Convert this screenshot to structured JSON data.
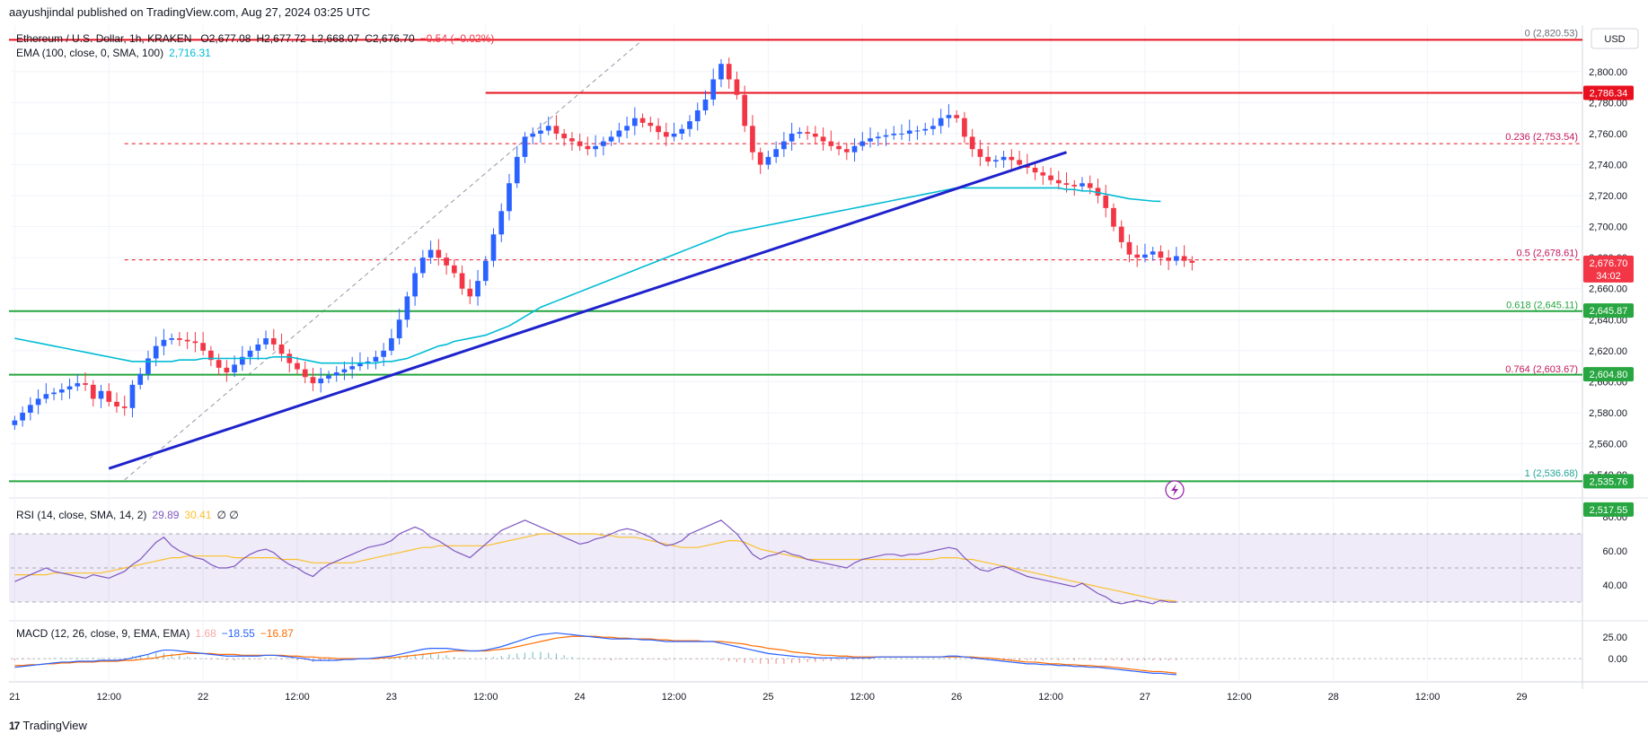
{
  "header": {
    "published": "aayushjindal published on TradingView.com, Aug 27, 2024 03:25 UTC"
  },
  "legend": {
    "symbol": "Ethereum / U.S. Dollar, 1h, KRAKEN",
    "open": "O2,677.08",
    "high": "H2,677.72",
    "low": "L2,668.07",
    "close": "C2,676.70",
    "change": "−0.54 (−0.02%)",
    "ema_label": "EMA (100, close, 0, SMA, 100)",
    "ema_value": "2,716.31"
  },
  "currency": "USD",
  "footer": {
    "brand": "TradingView",
    "logo": "17"
  },
  "colors": {
    "bull": "#2962ff",
    "bear": "#f23645",
    "ema": "#00bcd4",
    "trendline": "#1e22cc",
    "resistance": "#e8101e",
    "support": "#27a641",
    "rsi": "#7e57c2",
    "rsi_ma": "#fbc02d",
    "macd": "#2962ff",
    "signal": "#ff6d00"
  },
  "chart_data": {
    "type": "candlestick",
    "y_axis": {
      "ticks": [
        2540,
        2560,
        2580,
        2600,
        2620,
        2640,
        2660,
        2680,
        2700,
        2720,
        2740,
        2760,
        2780,
        2800
      ],
      "tick_labels": [
        "2,540.00",
        "2,560.00",
        "2,580.00",
        "2,600.00",
        "2,620.00",
        "2,640.00",
        "2,660.00",
        "2,680.00",
        "2,700.00",
        "2,720.00",
        "2,740.00",
        "2,760.00",
        "2,780.00",
        "2,800.00"
      ],
      "ylim": [
        2525,
        2830
      ]
    },
    "x_axis": {
      "labels": [
        {
          "t": 0,
          "label": "21"
        },
        {
          "t": 12,
          "label": "12:00"
        },
        {
          "t": 24,
          "label": "22"
        },
        {
          "t": 36,
          "label": "12:00"
        },
        {
          "t": 48,
          "label": "23"
        },
        {
          "t": 60,
          "label": "12:00"
        },
        {
          "t": 72,
          "label": "24"
        },
        {
          "t": 84,
          "label": "12:00"
        },
        {
          "t": 96,
          "label": "25"
        },
        {
          "t": 108,
          "label": "12:00"
        },
        {
          "t": 120,
          "label": "26"
        },
        {
          "t": 132,
          "label": "12:00"
        },
        {
          "t": 144,
          "label": "27"
        },
        {
          "t": 156,
          "label": "12:00"
        },
        {
          "t": 168,
          "label": "28"
        },
        {
          "t": 180,
          "label": "12:00"
        },
        {
          "t": 192,
          "label": "29"
        }
      ],
      "xlim": [
        -0.5,
        199.5
      ]
    },
    "closes": [
      2575,
      2580,
      2585,
      2589,
      2592,
      2593,
      2595,
      2597,
      2599,
      2598,
      2589,
      2594,
      2587,
      2584,
      2583,
      2598,
      2605,
      2615,
      2623,
      2627,
      2628,
      2627,
      2626,
      2625,
      2620,
      2614,
      2609,
      2606,
      2611,
      2616,
      2620,
      2624,
      2628,
      2624,
      2618,
      2612,
      2608,
      2603,
      2599,
      2602,
      2604,
      2606,
      2608,
      2610,
      2612,
      2613,
      2616,
      2620,
      2628,
      2640,
      2655,
      2670,
      2680,
      2685,
      2680,
      2675,
      2670,
      2660,
      2655,
      2665,
      2678,
      2695,
      2710,
      2728,
      2745,
      2758,
      2760,
      2762,
      2765,
      2760,
      2757,
      2755,
      2752,
      2750,
      2752,
      2755,
      2758,
      2762,
      2765,
      2770,
      2767,
      2765,
      2761,
      2758,
      2760,
      2763,
      2768,
      2775,
      2782,
      2795,
      2805,
      2795,
      2785,
      2765,
      2748,
      2740,
      2745,
      2750,
      2755,
      2760,
      2761,
      2760,
      2758,
      2755,
      2752,
      2750,
      2748,
      2752,
      2755,
      2757,
      2758,
      2759,
      2760,
      2760,
      2762,
      2762,
      2763,
      2765,
      2770,
      2772,
      2770,
      2758,
      2750,
      2745,
      2742,
      2743,
      2745,
      2743,
      2740,
      2738,
      2735,
      2733,
      2730,
      2728,
      2727,
      2726,
      2728,
      2725,
      2720,
      2712,
      2700,
      2690,
      2682,
      2680,
      2682,
      2684,
      2680,
      2678,
      2681,
      2678,
      2676.7
    ],
    "highs_lows_note": "OHLC series of ETH/USD 1h candles, approx. from chart",
    "ema100": [
      2628,
      2627,
      2626,
      2625,
      2624,
      2623,
      2622,
      2621,
      2620,
      2619,
      2618,
      2617,
      2616,
      2615,
      2614,
      2613,
      2613,
      2613,
      2613,
      2613,
      2613,
      2614,
      2614,
      2614,
      2615,
      2615,
      2615,
      2615,
      2615,
      2615,
      2615,
      2615,
      2615,
      2616,
      2616,
      2616,
      2615,
      2614,
      2613,
      2612,
      2612,
      2612,
      2612,
      2612,
      2612,
      2612,
      2612,
      2613,
      2613,
      2614,
      2615,
      2617,
      2619,
      2621,
      2623,
      2624,
      2626,
      2627,
      2628,
      2629,
      2630,
      2632,
      2634,
      2636,
      2639,
      2642,
      2645,
      2648,
      2650,
      2652,
      2654,
      2656,
      2658,
      2660,
      2662,
      2664,
      2666,
      2668,
      2670,
      2672,
      2674,
      2676,
      2678,
      2680,
      2682,
      2684,
      2686,
      2688,
      2690,
      2692,
      2694,
      2696,
      2697,
      2698,
      2699,
      2700,
      2701,
      2702,
      2703,
      2704,
      2705,
      2706,
      2707,
      2708,
      2709,
      2710,
      2711,
      2712,
      2713,
      2714,
      2715,
      2716,
      2717,
      2718,
      2719,
      2720,
      2721,
      2722,
      2723,
      2724,
      2725,
      2725,
      2725,
      2725,
      2725,
      2725,
      2725,
      2725,
      2725,
      2725,
      2725,
      2725,
      2725,
      2725,
      2724,
      2724,
      2723,
      2723,
      2722,
      2721,
      2720,
      2719,
      2718,
      2717.5,
      2717,
      2716.5,
      2716.3
    ],
    "horizontal_levels": [
      {
        "price": 2820.53,
        "kind": "resistance",
        "style": "solid"
      },
      {
        "price": 2786.34,
        "kind": "resistance",
        "style": "solid",
        "from_t": 60
      },
      {
        "price": 2645.5,
        "kind": "support",
        "style": "solid"
      },
      {
        "price": 2604.5,
        "kind": "support",
        "style": "solid"
      },
      {
        "price": 2535.76,
        "kind": "support",
        "style": "solid"
      }
    ],
    "fibonacci": {
      "from_t": 14,
      "levels": [
        {
          "ratio_label": "0",
          "price": 2820.53,
          "label": "0 (2,820.53)",
          "dashed": false
        },
        {
          "ratio_label": "0.236",
          "price": 2753.54,
          "label": "0.236 (2,753.54)",
          "dashed": true
        },
        {
          "ratio_label": "0.5",
          "price": 2678.61,
          "label": "0.5 (2,678.61)",
          "dashed": true
        },
        {
          "ratio_label": "0.618",
          "price": 2645.11,
          "label": "0.618 (2,645.11)",
          "dashed": false
        },
        {
          "ratio_label": "0.764",
          "price": 2603.67,
          "label": "0.764 (2,603.67)",
          "dashed": false
        },
        {
          "ratio_label": "1",
          "price": 2536.68,
          "label": "1 (2,536.68)",
          "dashed": false
        }
      ],
      "diagonal": {
        "t1": 14,
        "p1": 2536.68,
        "t2": 80,
        "p2": 2820.53
      }
    },
    "trendline": {
      "t1": 12,
      "p1": 2544,
      "t2": 134,
      "p2": 2748
    },
    "price_tags": [
      {
        "price": 2786.34,
        "label": "2,786.34",
        "color": "#e8101e"
      },
      {
        "price": 2676.7,
        "label": "2,676.70",
        "sub": "34:02",
        "color": "#f23645"
      },
      {
        "price": 2645.87,
        "label": "2,645.87",
        "color": "#27a641"
      },
      {
        "price": 2604.8,
        "label": "2,604.80",
        "color": "#27a641"
      },
      {
        "price": 2535.76,
        "label": "2,535.76",
        "color": "#27a641"
      },
      {
        "price": 2517.55,
        "label": "2,517.55",
        "color": "#27a641"
      }
    ],
    "rsi": {
      "label": "RSI (14, close, SMA, 14, 2)",
      "value": "29.89",
      "ma_value": "30.41",
      "extra": "∅ ∅",
      "ticks": [
        "80.00",
        "60.00",
        "40.00"
      ],
      "tick_values": [
        80,
        60,
        40
      ],
      "band": [
        30,
        70
      ],
      "values": [
        42,
        44,
        46,
        48,
        50,
        48,
        47,
        46,
        45,
        44,
        46,
        45,
        44,
        46,
        48,
        52,
        55,
        60,
        65,
        68,
        63,
        60,
        58,
        56,
        55,
        52,
        50,
        50,
        51,
        55,
        58,
        60,
        61,
        59,
        55,
        52,
        50,
        47,
        45,
        49,
        52,
        54,
        56,
        58,
        60,
        62,
        63,
        64,
        66,
        70,
        72,
        74,
        72,
        68,
        66,
        63,
        60,
        58,
        56,
        60,
        64,
        68,
        72,
        74,
        76,
        78,
        76,
        74,
        72,
        70,
        68,
        66,
        64,
        65,
        67,
        68,
        70,
        72,
        73,
        72,
        70,
        68,
        65,
        63,
        64,
        66,
        70,
        72,
        74,
        76,
        78,
        74,
        70,
        64,
        58,
        55,
        57,
        58,
        60,
        58,
        57,
        55,
        54,
        53,
        52,
        51,
        50,
        53,
        55,
        56,
        57,
        58,
        58,
        57,
        58,
        58,
        59,
        60,
        61,
        62,
        61,
        56,
        52,
        49,
        48,
        50,
        51,
        49,
        47,
        45,
        44,
        43,
        42,
        41,
        40,
        39,
        41,
        38,
        35,
        33,
        30,
        29,
        30,
        31,
        30,
        29,
        31,
        30,
        29.89
      ],
      "ma_values": [
        46,
        46,
        46,
        46,
        46,
        47,
        47,
        47,
        47,
        47,
        47,
        47,
        48,
        49,
        50,
        51,
        52,
        53,
        54,
        55,
        56,
        56,
        57,
        57,
        57,
        57,
        57,
        57,
        56,
        56,
        56,
        56,
        56,
        56,
        55,
        55,
        55,
        54,
        53,
        53,
        53,
        53,
        53,
        53,
        54,
        55,
        56,
        57,
        58,
        59,
        60,
        61,
        62,
        62,
        63,
        63,
        63,
        63,
        63,
        63,
        63,
        64,
        65,
        66,
        67,
        68,
        69,
        70,
        70,
        70,
        70,
        70,
        70,
        70,
        70,
        69,
        69,
        68,
        68,
        68,
        67,
        66,
        65,
        64,
        63,
        62,
        62,
        62,
        63,
        64,
        65,
        66,
        66,
        65,
        63,
        61,
        60,
        59,
        58,
        57,
        56,
        55,
        55,
        55,
        55,
        55,
        55,
        55,
        55,
        55,
        55,
        55,
        55,
        55,
        55,
        55,
        55,
        55,
        56,
        56,
        56,
        55,
        55,
        54,
        53,
        52,
        51,
        50,
        49,
        48,
        47,
        46,
        45,
        44,
        43,
        42,
        41,
        40,
        39,
        38,
        37,
        36,
        35,
        34,
        33,
        32,
        31,
        31,
        30.41
      ]
    },
    "macd": {
      "label": "MACD (12, 26, close, 9, EMA, EMA)",
      "hist_value": "1.68",
      "macd_value": "−18.55",
      "signal_value": "−16.87",
      "ticks": [
        "25.00",
        "0.00"
      ],
      "tick_values": [
        25,
        0
      ],
      "ylim": [
        -25,
        42
      ],
      "macd_values": [
        -10,
        -9,
        -8,
        -7,
        -6,
        -5,
        -4,
        -4,
        -3,
        -3,
        -3,
        -2,
        -2,
        -2,
        -1,
        1,
        3,
        5,
        8,
        10,
        10,
        9,
        8,
        7,
        6,
        5,
        4,
        3,
        3,
        3,
        3,
        3,
        4,
        4,
        3,
        2,
        1,
        0,
        -2,
        -2,
        -2,
        -2,
        -1,
        -1,
        0,
        0,
        1,
        2,
        3,
        5,
        7,
        9,
        11,
        12,
        12,
        12,
        11,
        10,
        9,
        9,
        10,
        12,
        14,
        17,
        20,
        23,
        26,
        28,
        29,
        30,
        29,
        28,
        27,
        26,
        25,
        24,
        23,
        23,
        23,
        23,
        22,
        22,
        21,
        20,
        20,
        20,
        20,
        20,
        20,
        20,
        18,
        16,
        14,
        12,
        10,
        8,
        6,
        5,
        4,
        3,
        2,
        2,
        1,
        1,
        1,
        1,
        1,
        1,
        1,
        1,
        2,
        2,
        2,
        2,
        2,
        2,
        2,
        2,
        2,
        3,
        3,
        2,
        1,
        0,
        -1,
        -2,
        -3,
        -4,
        -5,
        -6,
        -6,
        -7,
        -7,
        -8,
        -8,
        -9,
        -9,
        -10,
        -10,
        -11,
        -12,
        -13,
        -14,
        -15,
        -16,
        -17,
        -17,
        -18,
        -18.55
      ],
      "signal_values": [
        -8,
        -8,
        -7,
        -7,
        -6,
        -6,
        -5,
        -5,
        -4,
        -4,
        -4,
        -3,
        -3,
        -3,
        -2,
        -2,
        -1,
        0,
        1,
        3,
        4,
        5,
        6,
        6,
        6,
        6,
        5,
        5,
        5,
        4,
        4,
        4,
        4,
        4,
        4,
        3,
        3,
        2,
        2,
        1,
        1,
        0,
        0,
        0,
        0,
        0,
        0,
        1,
        1,
        2,
        3,
        4,
        5,
        6,
        7,
        8,
        9,
        9,
        9,
        9,
        9,
        10,
        11,
        12,
        14,
        16,
        18,
        20,
        22,
        24,
        25,
        26,
        26,
        26,
        26,
        25,
        25,
        24,
        24,
        23,
        23,
        23,
        22,
        22,
        21,
        21,
        21,
        21,
        20,
        20,
        20,
        19,
        18,
        17,
        15,
        14,
        12,
        11,
        10,
        8,
        7,
        6,
        5,
        4,
        4,
        3,
        3,
        2,
        2,
        2,
        2,
        2,
        2,
        2,
        2,
        2,
        2,
        2,
        2,
        2,
        2,
        2,
        2,
        1,
        1,
        0,
        -1,
        -2,
        -3,
        -4,
        -4,
        -5,
        -6,
        -6,
        -7,
        -7,
        -8,
        -8,
        -9,
        -9,
        -10,
        -11,
        -12,
        -13,
        -14,
        -15,
        -15,
        -16,
        -16.87
      ]
    }
  }
}
